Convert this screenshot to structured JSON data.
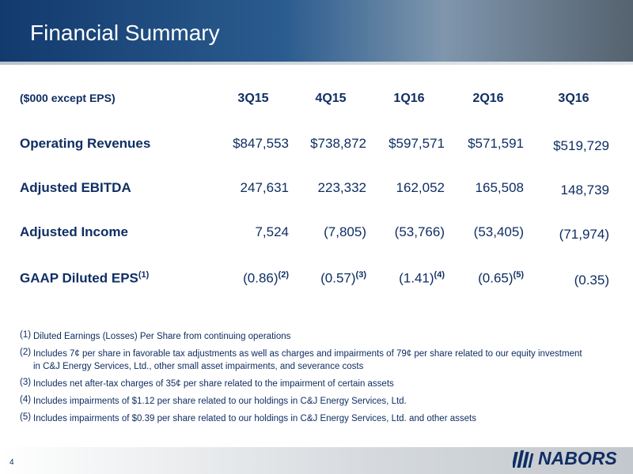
{
  "header": {
    "title": "Financial Summary"
  },
  "table": {
    "unit_label": "($000 except EPS)",
    "columns": [
      "3Q15",
      "4Q15",
      "1Q16",
      "2Q16",
      "3Q16"
    ],
    "rows": [
      {
        "label": "Operating Revenues",
        "cells": [
          {
            "value": "$847,553"
          },
          {
            "value": "$738,872"
          },
          {
            "value": "$597,571"
          },
          {
            "value": "$571,591"
          },
          {
            "value": "$519,729"
          }
        ]
      },
      {
        "label": "Adjusted EBITDA",
        "cells": [
          {
            "value": "247,631"
          },
          {
            "value": "223,332"
          },
          {
            "value": "162,052"
          },
          {
            "value": "165,508"
          },
          {
            "value": "148,739"
          }
        ]
      },
      {
        "label": "Adjusted Income",
        "cells": [
          {
            "value": "7,524"
          },
          {
            "value": "(7,805)"
          },
          {
            "value": "(53,766)"
          },
          {
            "value": "(53,405)"
          },
          {
            "value": "(71,974)"
          }
        ]
      },
      {
        "label": "GAAP Diluted EPS",
        "note": "(1)",
        "cells": [
          {
            "value": "(0.86)",
            "note": "(2)"
          },
          {
            "value": "(0.57)",
            "note": "(3)"
          },
          {
            "value": "(1.41)",
            "note": "(4)"
          },
          {
            "value": "(0.65)",
            "note": "(5)"
          },
          {
            "value": "(0.35)"
          }
        ]
      }
    ]
  },
  "footnotes": [
    {
      "marker": "(1)",
      "text": "Diluted Earnings (Losses) Per Share from continuing operations"
    },
    {
      "marker": "(2)",
      "text": "Includes 7¢ per share in favorable tax adjustments as well as charges and impairments of 79¢ per share related to our equity investment in C&J Energy Services, Ltd., other small asset impairments, and severance costs"
    },
    {
      "marker": "(3)",
      "text": "Includes net after-tax charges of 35¢ per share related to the impairment of certain assets"
    },
    {
      "marker": "(4)",
      "text": "Includes impairments of $1.12 per share related to our holdings in C&J Energy Services, Ltd."
    },
    {
      "marker": "(5)",
      "text": "Includes impairments of $0.39 per share related to our holdings in C&J Energy Services, Ltd. and other assets"
    }
  ],
  "footer": {
    "page_number": "4",
    "logo": "NABORS"
  }
}
